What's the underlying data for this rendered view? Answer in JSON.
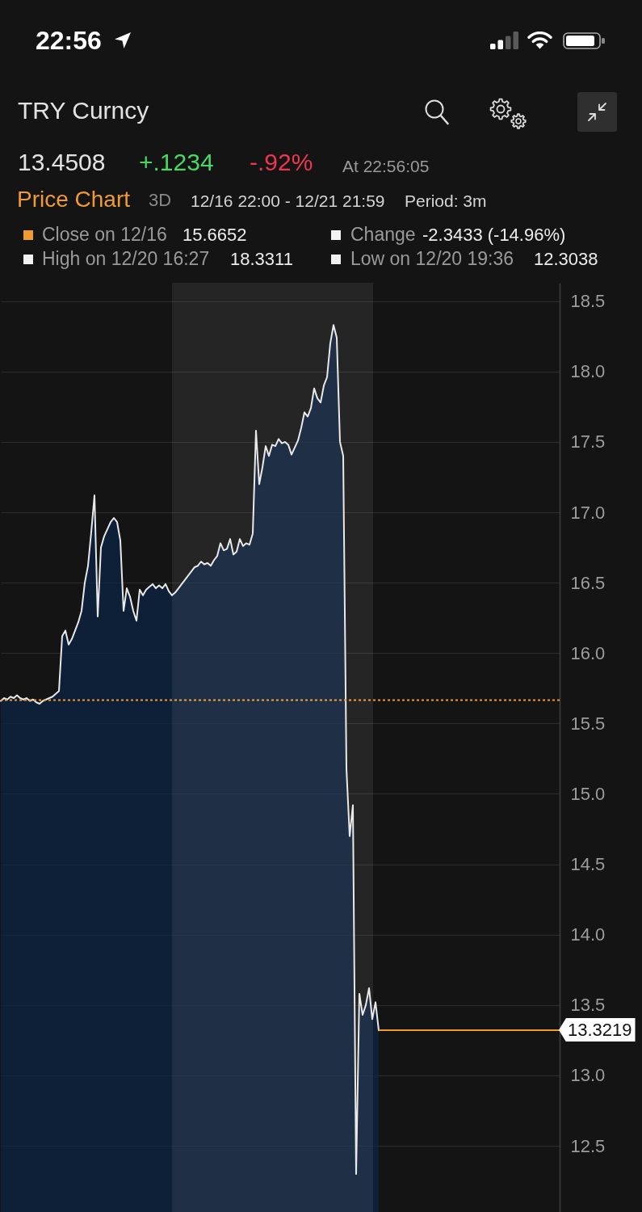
{
  "chart_data": {
    "type": "area",
    "title": "TRY Curncy",
    "annotations": [
      "22:56",
      "13.4508",
      "+.1234",
      "-.92%",
      "At 22:56:05",
      "Price Chart",
      "3D",
      "12/16 22:00 - 12/21 21:59",
      "Period: 3m",
      "Close on 12/16",
      "15.6652",
      "Change",
      "-2.3433 (-14.96%)",
      "High on 12/20 16:27",
      "18.3311",
      "Low on 12/20 19:36",
      "12.3038"
    ],
    "categories": [
      null,
      null,
      null,
      null,
      null,
      null,
      null,
      null,
      null,
      null,
      null,
      null,
      null,
      null,
      null,
      null,
      null,
      null,
      null,
      null,
      null,
      null,
      null,
      null,
      null,
      null,
      null,
      null,
      null,
      null,
      null,
      null,
      null,
      null,
      null,
      null,
      null,
      null,
      null,
      null,
      null,
      null,
      null,
      null,
      null,
      null,
      null,
      null,
      null,
      null,
      null,
      null,
      null,
      null,
      null,
      null,
      null,
      null,
      null,
      null,
      null,
      null,
      null,
      null,
      null,
      null,
      null,
      null,
      null,
      null,
      null,
      null,
      null,
      null,
      null,
      null,
      null,
      null,
      null,
      null,
      null,
      null,
      null,
      null,
      null,
      null,
      null,
      null,
      null,
      null,
      null,
      null,
      null,
      null,
      null,
      null,
      null,
      null,
      null,
      null,
      null,
      null,
      null,
      null,
      null,
      null,
      null,
      null,
      null,
      null,
      null,
      null,
      null,
      null,
      null,
      null,
      null,
      null,
      null,
      null,
      null,
      null,
      null,
      null,
      null,
      null,
      null,
      null,
      null,
      null,
      null,
      null,
      null,
      null,
      null,
      null,
      null,
      null,
      null,
      null,
      null,
      null,
      null,
      null,
      null,
      null,
      null,
      null,
      null,
      null,
      null,
      null,
      null,
      null,
      null,
      null,
      null,
      null,
      null,
      null,
      null,
      null,
      null,
      null,
      null,
      null,
      null,
      null,
      null,
      null,
      null,
      null,
      null,
      null
    ],
    "values": [
      15.66,
      15.68,
      15.67,
      15.69,
      15.68,
      15.7,
      15.68,
      15.67,
      15.68,
      15.66,
      15.67,
      15.65,
      15.64,
      15.66,
      15.67,
      15.68,
      15.69,
      15.71,
      15.73,
      16.12,
      16.16,
      16.06,
      16.1,
      16.16,
      16.22,
      16.3,
      16.5,
      16.62,
      16.86,
      17.12,
      16.26,
      16.75,
      16.83,
      16.88,
      16.93,
      16.96,
      16.93,
      16.8,
      16.3,
      16.46,
      16.4,
      16.3,
      16.23,
      16.45,
      16.41,
      16.45,
      16.47,
      16.49,
      16.46,
      16.48,
      16.46,
      16.49,
      16.44,
      16.41,
      16.43,
      16.46,
      16.49,
      16.52,
      16.55,
      16.58,
      16.61,
      16.62,
      16.65,
      16.63,
      16.64,
      16.62,
      16.66,
      16.69,
      16.78,
      16.73,
      16.74,
      16.81,
      16.7,
      16.72,
      16.81,
      16.76,
      16.78,
      16.77,
      16.85,
      17.58,
      17.2,
      17.32,
      17.47,
      17.4,
      17.48,
      17.47,
      17.52,
      17.49,
      17.5,
      17.48,
      17.41,
      17.46,
      17.51,
      17.6,
      17.71,
      17.68,
      17.74,
      17.88,
      17.81,
      17.78,
      17.9,
      17.96,
      18.2,
      18.33,
      18.24,
      17.5,
      17.4,
      15.18,
      14.7,
      14.92,
      12.3,
      13.58,
      13.43,
      13.5,
      13.62,
      13.4,
      13.52,
      13.32,
      null,
      null,
      null,
      null,
      null,
      null,
      null,
      null,
      null,
      null,
      null,
      null,
      null,
      null,
      null,
      null,
      null,
      null,
      null,
      null,
      null,
      null,
      null,
      null,
      null,
      null,
      null,
      null,
      null,
      null,
      null,
      null,
      null,
      null,
      null,
      null,
      null,
      null,
      null,
      null,
      null,
      null,
      null,
      null,
      null,
      null,
      null,
      null,
      null,
      null,
      null,
      null,
      null,
      null,
      null,
      null
    ],
    "color": "#0c2347",
    "ylim": [
      12.03,
      18.63
    ],
    "yticks": [
      12.5,
      {
        "value": 13,
        "label": "13.0"
      },
      13.5,
      {
        "value": 14,
        "label": "14.0"
      },
      14.5,
      {
        "value": 15,
        "label": "15.0"
      },
      15.5,
      {
        "value": 16,
        "label": "16.0"
      },
      16.5,
      {
        "value": 17,
        "label": "17.0"
      },
      17.5,
      {
        "value": 18,
        "label": "18.0"
      },
      18.5
    ],
    "ref_lines": [
      {
        "axis": "y",
        "value": 15.6652,
        "color": "#f39a2f",
        "line_style": "dotted"
      },
      {
        "axis": "y",
        "value": 13.3219,
        "label": "13.3219",
        "color": "#f39a2f",
        "line_style": "solid"
      }
    ],
    "grid": "y",
    "tick_labels": "y"
  }
}
